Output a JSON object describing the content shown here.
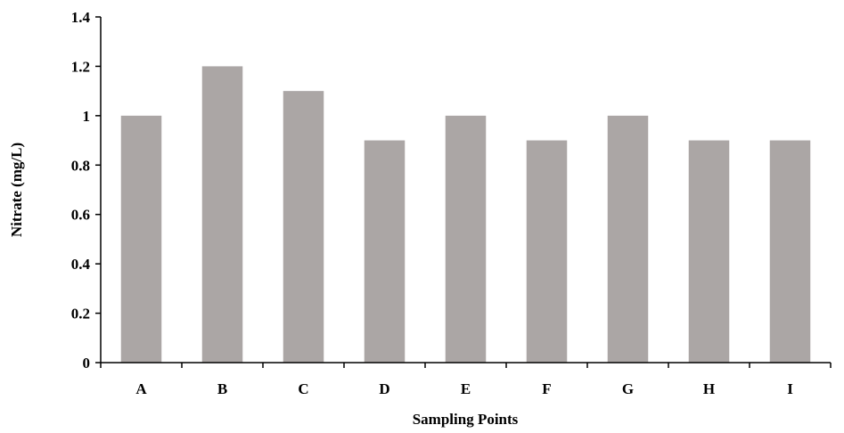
{
  "chart_data": {
    "type": "bar",
    "categories": [
      "A",
      "B",
      "C",
      "D",
      "E",
      "F",
      "G",
      "H",
      "I"
    ],
    "values": [
      1.0,
      1.2,
      1.1,
      0.9,
      1.0,
      0.9,
      1.0,
      0.9,
      0.9
    ],
    "title": "",
    "xlabel": "Sampling Points",
    "ylabel": "Nitrate (mg/L)",
    "ylim": [
      0,
      1.4
    ],
    "yticks": [
      0,
      0.2,
      0.4,
      0.6,
      0.8,
      1,
      1.2,
      1.4
    ],
    "ytick_labels": [
      "0",
      "0.2",
      "0.4",
      "0.6",
      "0.8",
      "1",
      "1.2",
      "1.4"
    ],
    "bar_color": "#aba6a5",
    "grid": false,
    "legend": "none"
  }
}
